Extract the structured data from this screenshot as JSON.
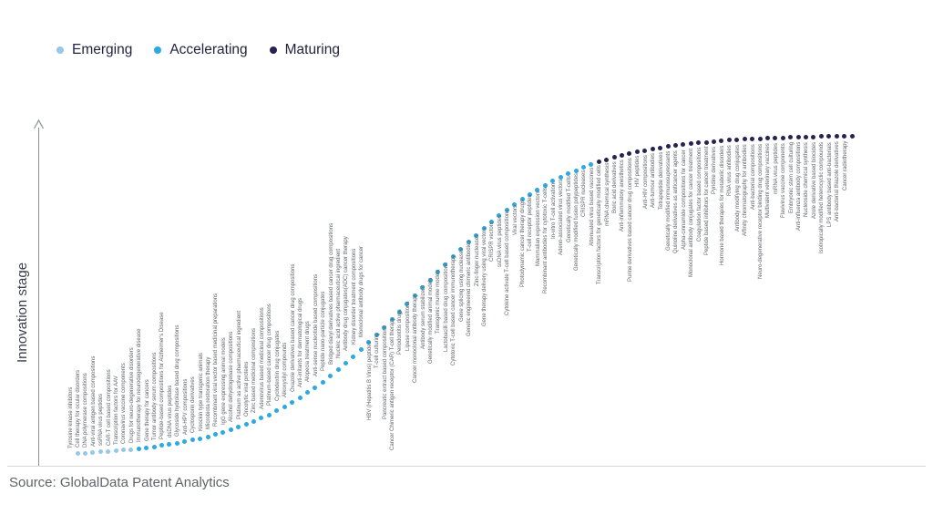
{
  "source": "Source: GlobalData Patent Analytics",
  "chart_data": {
    "type": "scatter",
    "title": "",
    "xlabel": "",
    "ylabel": "Innovation stage",
    "legend_position": "top-left",
    "grid": false,
    "shape": "s-curve ascending left to right, one dot per technology, evenly spaced on x",
    "series": [
      {
        "name": "Emerging",
        "color": "#95c8e8",
        "labels": [
          "Tyrosine kinase inhibitors",
          "Cell therapy for ocular disorders",
          "DNA polymerase compositions",
          "Anti-viral antigen based compositions",
          "ssRNA virus peptides",
          "CAR-T cell based compositions",
          "Transcription factors for AAV",
          "Coronavirus vaccine components"
        ]
      },
      {
        "name": "Accelerating",
        "color": "#2aa9e2",
        "labels": [
          "Drugs for neuro-degenerative disorders",
          "Immunotherapy for neurodegenerative disease",
          "Gene therapy for cancers",
          "Tumor antibody serum compositions",
          "Peptide-based compositions for Alzheimer's Disease",
          "dsDNA virus peptides",
          "Glycoside hydrolase based drug compositions",
          "Anti-HPV compositions",
          "Cyclosporin derivatives",
          "Knockin type transgenic animals",
          "Microbiota restoration therapy",
          "Recombinant viral vector based medicinal preparations",
          "IgG gene expressing animal models",
          "Alcohol dehydrogenase compositions",
          "Platinum as active pharmaceutical ingredient",
          "Oncolytic viral proteins",
          "Zinc based medicinal compositions",
          "Adenovirus based medicinal compositions",
          "Platinum-based cancer drug compositions",
          "Cyclodextrin drug conjugates",
          "Alkoxysilyl compounds",
          "Oxazole derivatives based cancer drug compositions",
          "Anti-irritants for dermatological drugs",
          "Alopecia treatment drugs",
          "Anti-sense nucleotide based compositions",
          "Peptide nano-particle conjugates",
          "Bridged diaryl derivatives based cancer drug compositions",
          "Nucleic acid active pharmaceutical ingredient",
          "Antibody drug conjugates(ADC) cancer therapy",
          "Kidney disorder treatment compositions",
          "Monoclonal antibody drugs for cancer",
          "HBV (Hepatitis B Virus) peptides",
          "T-cell culturing",
          "Pancreatic extract based compositions",
          "Cancer Chimeric antigen receptor (CAR) T-cell therapy",
          "Periodontitis drugs",
          "Lipase compositions",
          "Cancer monoclonal antibody therapy",
          "Antibody serum stabilizers",
          "Genetically modified animal models",
          "Transgenic murine models",
          "Lactobacilli based drug compositions",
          "Cytotoxic T-cell based cancer immunotherapy",
          "Gene splicing using nucleases",
          "Genetic engineered chimeric antibodies",
          "Zinc-finger nucleases",
          "Gene therapy delivery using viral vectors",
          "CRISPR vectors",
          "ssDNA virus peptides",
          "Cytokine activate T-cell based compositions",
          "Viral vectors",
          "Photodynamic cancer therapy drugs",
          "T-cell receptor peptides",
          "Mammalian expression vectors",
          "Recombinant antibodies for cytotoxic T-cells",
          "In-vitro T-cell activation",
          "Adeno-associated virus vectors",
          "Genetically modified T-cells",
          "Genetically modified fusion polypeptides",
          "CRISPR nucleases"
        ]
      },
      {
        "name": "Maturing",
        "color": "#262252",
        "labels": [
          "Attenuated virus based vaccines",
          "Transcription factors for genetically modified cells",
          "mRNA chemical synthesis",
          "Boric acid derivatives",
          "Anti-inflammatory anesthetics",
          "Purine derivatives based cancer drug compositions",
          "HIV peptides",
          "Anti-HIV compositions",
          "Anti-tumour antibodies",
          "Tetrapeptide derivatives",
          "Genetically modified immunosupressants",
          "Quinoline derivatives as anticancer agents",
          "Alpha-cinnamide compositions for cancer",
          "Monoclonal antibody conjugates for cancer treatment",
          "Coagulation factor based compositions",
          "Peptide based inhibitors for cancer treatment",
          "Pyridine derivatives",
          "Hormone based therapies for metabolic disorders",
          "RNA virus antibodies",
          "Antibody modifying drug conjugates",
          "Affinity chromatography for antibodies",
          "Anti-bacterial compositions",
          "Neuro-degenerative receptor binding drug compositions",
          "Multivalent veterinary vaccines",
          "mRNA virus peptides",
          "Flavivirus vaccine components",
          "Embryonic stem cell culturing",
          "Anti-influenza antibody compositions",
          "Nucleoside chemical synthesis",
          "Azole derivative based biocides",
          "Isotropically modified heterocyclic compounds",
          "LPS antibody based anti-bacterials",
          "Anti-bacterial thiazole derivatives",
          "Cancer radiotherapy"
        ]
      }
    ]
  }
}
